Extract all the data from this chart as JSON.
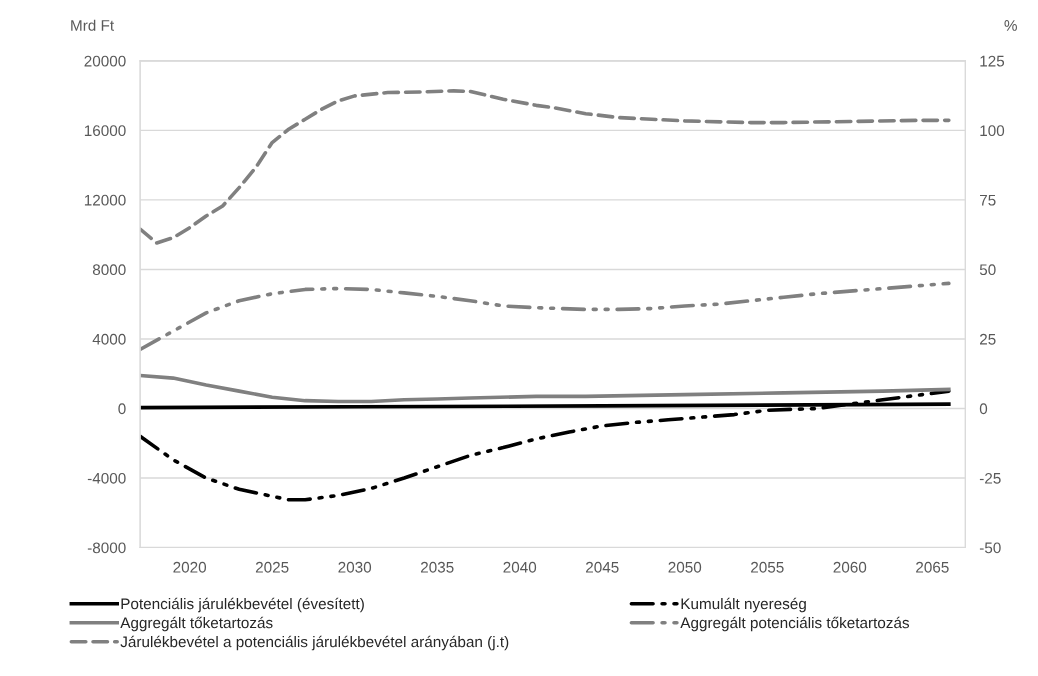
{
  "chart_data": {
    "type": "line",
    "ylabel": "Mrd Ft",
    "y2label": "%",
    "xlim": [
      2017,
      2067
    ],
    "xticks": [
      2020,
      2025,
      2030,
      2035,
      2040,
      2045,
      2050,
      2055,
      2060,
      2065
    ],
    "ylim": [
      -8000,
      20000
    ],
    "yticks": [
      -8000,
      -4000,
      0,
      4000,
      8000,
      12000,
      16000,
      20000
    ],
    "y2lim": [
      -50,
      125
    ],
    "y2ticks": [
      -50,
      -25,
      0,
      25,
      50,
      75,
      100,
      125
    ],
    "grid": "y",
    "legend": "bottom",
    "marker": "none",
    "series": [
      {
        "name": "Potenciális járulékbevétel (évesített)",
        "color": "#000000",
        "line_style": "solid",
        "x": [
          2017,
          2030,
          2045,
          2066
        ],
        "values": [
          50,
          100,
          150,
          250
        ]
      },
      {
        "name": "Kumulált nyereség",
        "color": "#000000",
        "line_style": "dashdotdot",
        "x": [
          2017,
          2019,
          2021,
          2023,
          2025,
          2026,
          2027,
          2029,
          2031,
          2033,
          2035,
          2037,
          2039,
          2041,
          2043,
          2045,
          2047,
          2049,
          2051,
          2053,
          2055,
          2058,
          2060,
          2062,
          2064,
          2066
        ],
        "values": [
          -1600,
          -2950,
          -4000,
          -4650,
          -5050,
          -5250,
          -5250,
          -5000,
          -4600,
          -4000,
          -3350,
          -2700,
          -2250,
          -1750,
          -1350,
          -1000,
          -800,
          -650,
          -500,
          -350,
          -100,
          0,
          250,
          500,
          750,
          1000
        ]
      },
      {
        "name": "Aggregált tőketartozás",
        "color": "#808080",
        "line_style": "solid",
        "x": [
          2017,
          2019,
          2021,
          2023,
          2025,
          2027,
          2029,
          2031,
          2033,
          2035,
          2037,
          2041,
          2044,
          2050,
          2056,
          2062,
          2066
        ],
        "values": [
          1900,
          1750,
          1350,
          1000,
          650,
          450,
          400,
          400,
          500,
          550,
          600,
          700,
          700,
          800,
          900,
          1000,
          1100
        ]
      },
      {
        "name": "Aggregált potenciális tőketartozás",
        "color": "#808080",
        "line_style": "dashdotdot",
        "x": [
          2017,
          2019,
          2021,
          2023,
          2025,
          2027,
          2029,
          2031,
          2033,
          2035,
          2037,
          2039,
          2041,
          2044,
          2046,
          2048,
          2050,
          2052,
          2054,
          2056,
          2058,
          2060,
          2062,
          2064,
          2066
        ],
        "values": [
          3400,
          4450,
          5500,
          6200,
          6600,
          6850,
          6900,
          6850,
          6650,
          6450,
          6200,
          5900,
          5800,
          5700,
          5700,
          5750,
          5900,
          6000,
          6200,
          6400,
          6600,
          6750,
          6900,
          7050,
          7200
        ]
      },
      {
        "name": "Járulékbevétel a potenciális járulékbevétel arányában (j.t)",
        "color": "#808080",
        "line_style": "dashed",
        "axis": "y2",
        "x": [
          2017,
          2018,
          2019,
          2020,
          2021,
          2022,
          2023,
          2024,
          2025,
          2026,
          2027,
          2028,
          2029,
          2030,
          2032,
          2034,
          2036,
          2037,
          2039,
          2041,
          2042,
          2044,
          2046,
          2048,
          2050,
          2054,
          2056,
          2060,
          2064,
          2066
        ],
        "values": [
          64.5,
          59.5,
          61.4,
          65,
          69.2,
          72.8,
          79.4,
          86.6,
          95.6,
          100.4,
          104,
          107.6,
          110.6,
          112.4,
          113.6,
          113.8,
          114.2,
          114,
          111.2,
          109,
          108.2,
          106,
          104.6,
          104,
          103.4,
          102.8,
          102.8,
          103.2,
          103.6,
          103.6
        ]
      }
    ]
  }
}
